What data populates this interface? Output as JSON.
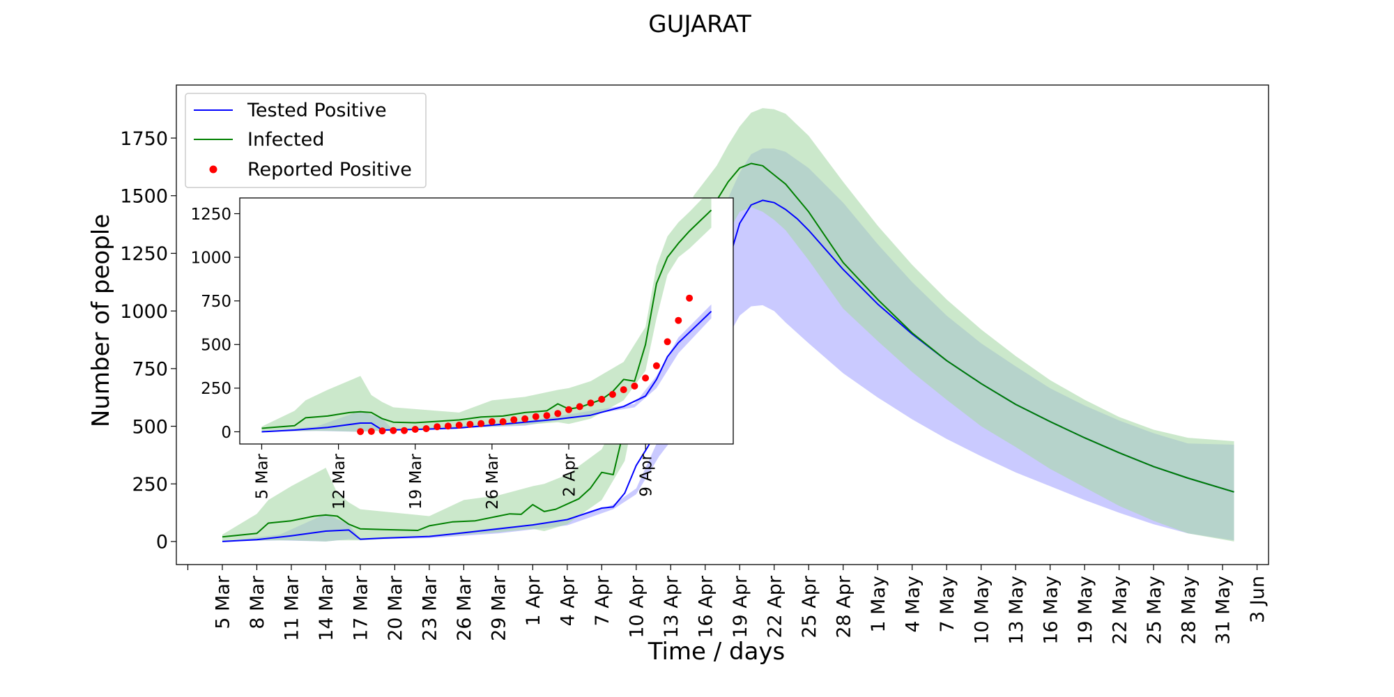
{
  "chart_data": [
    {
      "type": "line",
      "title": "GUJARAT",
      "xlabel": "Time / days",
      "ylabel": "Number of people",
      "xlim": [
        "2020-03-01",
        "2020-06-04"
      ],
      "ylim": [
        -100,
        1980
      ],
      "x_ticks": [
        "5 Mar",
        "8 Mar",
        "11 Mar",
        "14 Mar",
        "17 Mar",
        "20 Mar",
        "23 Mar",
        "26 Mar",
        "29 Mar",
        "1 Apr",
        "4 Apr",
        "7 Apr",
        "10 Apr",
        "13 Apr",
        "16 Apr",
        "19 Apr",
        "22 Apr",
        "25 Apr",
        "28 Apr",
        "1 May",
        "4 May",
        "7 May",
        "10 May",
        "13 May",
        "16 May",
        "19 May",
        "22 May",
        "25 May",
        "28 May",
        "31 May",
        "3 Jun"
      ],
      "x_tick_dates": [
        "2020-03-05",
        "2020-03-08",
        "2020-03-11",
        "2020-03-14",
        "2020-03-17",
        "2020-03-20",
        "2020-03-23",
        "2020-03-26",
        "2020-03-29",
        "2020-04-01",
        "2020-04-04",
        "2020-04-07",
        "2020-04-10",
        "2020-04-13",
        "2020-04-16",
        "2020-04-19",
        "2020-04-22",
        "2020-04-25",
        "2020-04-28",
        "2020-05-01",
        "2020-05-04",
        "2020-05-07",
        "2020-05-10",
        "2020-05-13",
        "2020-05-16",
        "2020-05-19",
        "2020-05-22",
        "2020-05-25",
        "2020-05-28",
        "2020-05-31",
        "2020-06-03"
      ],
      "y_ticks": [
        0,
        250,
        500,
        750,
        1000,
        1250,
        1500,
        1750
      ],
      "legend": {
        "placement": "upper-left",
        "entries": [
          "Tested Positive",
          "Infected",
          "Reported Positive"
        ]
      },
      "colors": {
        "tested": "#0000ff",
        "tested_band": "#b3b3ff",
        "infected": "#008000",
        "infected_band": "#a8d8a8",
        "reported": "#ff0000"
      },
      "series": [
        {
          "name": "Tested Positive",
          "x": [
            "2020-03-05",
            "2020-03-08",
            "2020-03-11",
            "2020-03-14",
            "2020-03-16",
            "2020-03-17",
            "2020-03-19",
            "2020-03-23",
            "2020-03-26",
            "2020-03-29",
            "2020-04-01",
            "2020-04-04",
            "2020-04-07",
            "2020-04-08",
            "2020-04-09",
            "2020-04-10",
            "2020-04-11",
            "2020-04-12",
            "2020-04-13",
            "2020-04-15",
            "2020-04-17",
            "2020-04-18",
            "2020-04-19",
            "2020-04-20",
            "2020-04-21",
            "2020-04-22",
            "2020-04-23",
            "2020-04-24",
            "2020-04-25",
            "2020-04-28",
            "2020-05-01",
            "2020-05-04",
            "2020-05-07",
            "2020-05-10",
            "2020-05-13",
            "2020-05-16",
            "2020-05-19",
            "2020-05-22",
            "2020-05-25",
            "2020-05-28",
            "2020-06-01"
          ],
          "y": [
            0,
            8,
            25,
            45,
            50,
            10,
            15,
            22,
            38,
            55,
            72,
            95,
            145,
            150,
            210,
            330,
            410,
            500,
            600,
            870,
            1060,
            1210,
            1380,
            1460,
            1480,
            1470,
            1440,
            1400,
            1350,
            1180,
            1030,
            900,
            785,
            685,
            595,
            520,
            450,
            385,
            325,
            275,
            215
          ]
        },
        {
          "name": "Infected",
          "x": [
            "2020-03-05",
            "2020-03-08",
            "2020-03-09",
            "2020-03-11",
            "2020-03-13",
            "2020-03-14",
            "2020-03-15",
            "2020-03-16",
            "2020-03-17",
            "2020-03-19",
            "2020-03-22",
            "2020-03-23",
            "2020-03-25",
            "2020-03-27",
            "2020-03-29",
            "2020-03-30",
            "2020-03-31",
            "2020-04-01",
            "2020-04-02",
            "2020-04-03",
            "2020-04-05",
            "2020-04-06",
            "2020-04-07",
            "2020-04-08",
            "2020-04-09",
            "2020-04-10",
            "2020-04-11",
            "2020-04-12",
            "2020-04-13",
            "2020-04-15",
            "2020-04-17",
            "2020-04-18",
            "2020-04-19",
            "2020-04-20",
            "2020-04-21",
            "2020-04-22",
            "2020-04-23",
            "2020-04-25",
            "2020-04-28",
            "2020-05-01",
            "2020-05-04",
            "2020-05-07",
            "2020-05-10",
            "2020-05-13",
            "2020-05-16",
            "2020-05-19",
            "2020-05-22",
            "2020-05-25",
            "2020-05-28",
            "2020-06-01"
          ],
          "y": [
            20,
            35,
            80,
            90,
            110,
            115,
            110,
            75,
            55,
            52,
            48,
            68,
            85,
            90,
            110,
            120,
            118,
            160,
            130,
            140,
            185,
            230,
            300,
            290,
            500,
            730,
            900,
            1000,
            1150,
            1330,
            1480,
            1560,
            1620,
            1640,
            1630,
            1590,
            1550,
            1430,
            1210,
            1050,
            905,
            785,
            685,
            595,
            520,
            450,
            385,
            325,
            275,
            215
          ]
        },
        {
          "name": "Reported Positive",
          "x": [
            "2020-03-14",
            "2020-03-15",
            "2020-03-16",
            "2020-03-17",
            "2020-03-18",
            "2020-03-19",
            "2020-03-20",
            "2020-03-21",
            "2020-03-22",
            "2020-03-23",
            "2020-03-24",
            "2020-03-25",
            "2020-03-26",
            "2020-03-27",
            "2020-03-28",
            "2020-03-29",
            "2020-03-30",
            "2020-03-31",
            "2020-04-01",
            "2020-04-02",
            "2020-04-03",
            "2020-04-04",
            "2020-04-05",
            "2020-04-06",
            "2020-04-07",
            "2020-04-08",
            "2020-04-09",
            "2020-04-10",
            "2020-04-11",
            "2020-04-12",
            "2020-04-13"
          ],
          "y": [
            1,
            2,
            5,
            7,
            7,
            14,
            18,
            29,
            33,
            38,
            43,
            47,
            58,
            58,
            69,
            74,
            87,
            93,
            105,
            127,
            144,
            165,
            186,
            214,
            241,
            262,
            308,
            378,
            516,
            638,
            766
          ]
        }
      ],
      "bands": [
        {
          "series": "Tested Positive",
          "x": [
            "2020-03-05",
            "2020-03-10",
            "2020-03-14",
            "2020-03-16",
            "2020-03-17",
            "2020-03-23",
            "2020-03-29",
            "2020-04-04",
            "2020-04-08",
            "2020-04-10",
            "2020-04-12",
            "2020-04-14",
            "2020-04-16",
            "2020-04-17",
            "2020-04-18",
            "2020-04-19",
            "2020-04-20",
            "2020-04-21",
            "2020-04-22",
            "2020-04-23",
            "2020-04-25",
            "2020-04-28",
            "2020-05-01",
            "2020-05-04",
            "2020-05-07",
            "2020-05-10",
            "2020-05-13",
            "2020-05-16",
            "2020-05-19",
            "2020-05-22",
            "2020-05-25",
            "2020-05-28",
            "2020-06-01"
          ],
          "lower": [
            0,
            5,
            0,
            10,
            8,
            15,
            35,
            70,
            140,
            205,
            370,
            500,
            700,
            790,
            890,
            980,
            1020,
            1025,
            1000,
            950,
            860,
            730,
            625,
            530,
            445,
            370,
            300,
            240,
            180,
            125,
            75,
            35,
            5
          ],
          "upper": [
            0,
            30,
            120,
            75,
            10,
            25,
            60,
            90,
            160,
            230,
            450,
            650,
            1080,
            1270,
            1490,
            1600,
            1680,
            1705,
            1705,
            1690,
            1620,
            1470,
            1290,
            1125,
            980,
            860,
            760,
            665,
            590,
            525,
            470,
            425,
            420
          ]
        },
        {
          "series": "Infected",
          "x": [
            "2020-03-05",
            "2020-03-08",
            "2020-03-09",
            "2020-03-11",
            "2020-03-14",
            "2020-03-15",
            "2020-03-16",
            "2020-03-17",
            "2020-03-23",
            "2020-03-26",
            "2020-03-29",
            "2020-04-01",
            "2020-04-02",
            "2020-04-04",
            "2020-04-07",
            "2020-04-09",
            "2020-04-10",
            "2020-04-11",
            "2020-04-12",
            "2020-04-13",
            "2020-04-15",
            "2020-04-17",
            "2020-04-18",
            "2020-04-19",
            "2020-04-20",
            "2020-04-21",
            "2020-04-22",
            "2020-04-23",
            "2020-04-25",
            "2020-04-28",
            "2020-05-01",
            "2020-05-04",
            "2020-05-07",
            "2020-05-10",
            "2020-05-13",
            "2020-05-16",
            "2020-05-19",
            "2020-05-22",
            "2020-05-25",
            "2020-05-28",
            "2020-06-01"
          ],
          "lower": [
            0,
            5,
            5,
            5,
            0,
            5,
            5,
            5,
            20,
            30,
            40,
            55,
            45,
            75,
            180,
            350,
            600,
            800,
            880,
            970,
            1080,
            1240,
            1340,
            1430,
            1450,
            1430,
            1395,
            1350,
            1220,
            1010,
            870,
            735,
            615,
            500,
            410,
            315,
            235,
            155,
            90,
            35,
            0
          ],
          "upper": [
            30,
            120,
            180,
            240,
            320,
            210,
            170,
            140,
            110,
            180,
            200,
            240,
            250,
            290,
            400,
            600,
            850,
            1000,
            1090,
            1240,
            1500,
            1630,
            1720,
            1800,
            1860,
            1880,
            1875,
            1855,
            1760,
            1560,
            1370,
            1200,
            1050,
            920,
            805,
            700,
            615,
            540,
            485,
            450,
            435
          ]
        }
      ]
    },
    {
      "type": "line",
      "title": "",
      "xlabel": "",
      "ylabel": "",
      "xlim": [
        "2020-03-03",
        "2020-04-17"
      ],
      "ylim": [
        -70,
        1340
      ],
      "x_ticks": [
        "5 Mar",
        "12 Mar",
        "19 Mar",
        "26 Mar",
        "2 Apr",
        "9 Apr"
      ],
      "x_tick_dates": [
        "2020-03-05",
        "2020-03-12",
        "2020-03-19",
        "2020-03-26",
        "2020-04-02",
        "2020-04-09"
      ],
      "y_ticks": [
        0,
        250,
        500,
        750,
        1000,
        1250
      ],
      "series": [
        {
          "name": "Tested Positive",
          "x": [
            "2020-03-05",
            "2020-03-08",
            "2020-03-11",
            "2020-03-14",
            "2020-03-15",
            "2020-03-16",
            "2020-03-20",
            "2020-03-23",
            "2020-03-26",
            "2020-03-29",
            "2020-04-01",
            "2020-04-04",
            "2020-04-07",
            "2020-04-09",
            "2020-04-10",
            "2020-04-11",
            "2020-04-12",
            "2020-04-13",
            "2020-04-14",
            "2020-04-15"
          ],
          "y": [
            0,
            10,
            25,
            50,
            50,
            10,
            15,
            22,
            38,
            55,
            72,
            95,
            145,
            205,
            300,
            430,
            510,
            570,
            630,
            690
          ]
        },
        {
          "name": "Infected",
          "x": [
            "2020-03-05",
            "2020-03-08",
            "2020-03-09",
            "2020-03-11",
            "2020-03-13",
            "2020-03-14",
            "2020-03-15",
            "2020-03-16",
            "2020-03-17",
            "2020-03-19",
            "2020-03-23",
            "2020-03-25",
            "2020-03-27",
            "2020-03-29",
            "2020-03-31",
            "2020-04-01",
            "2020-04-02",
            "2020-04-03",
            "2020-04-05",
            "2020-04-06",
            "2020-04-07",
            "2020-04-08",
            "2020-04-09",
            "2020-04-10",
            "2020-04-11",
            "2020-04-12",
            "2020-04-13",
            "2020-04-14",
            "2020-04-15"
          ],
          "y": [
            20,
            35,
            80,
            90,
            110,
            115,
            110,
            75,
            55,
            52,
            68,
            85,
            90,
            110,
            120,
            160,
            130,
            140,
            185,
            230,
            300,
            290,
            500,
            850,
            1000,
            1080,
            1150,
            1210,
            1270
          ]
        },
        {
          "name": "Reported Positive",
          "x": [
            "2020-03-14",
            "2020-03-15",
            "2020-03-16",
            "2020-03-17",
            "2020-03-18",
            "2020-03-19",
            "2020-03-20",
            "2020-03-21",
            "2020-03-22",
            "2020-03-23",
            "2020-03-24",
            "2020-03-25",
            "2020-03-26",
            "2020-03-27",
            "2020-03-28",
            "2020-03-29",
            "2020-03-30",
            "2020-03-31",
            "2020-04-01",
            "2020-04-02",
            "2020-04-03",
            "2020-04-04",
            "2020-04-05",
            "2020-04-06",
            "2020-04-07",
            "2020-04-08",
            "2020-04-09",
            "2020-04-10",
            "2020-04-11",
            "2020-04-12",
            "2020-04-13"
          ],
          "y": [
            1,
            2,
            5,
            7,
            7,
            14,
            18,
            29,
            33,
            38,
            43,
            47,
            58,
            58,
            69,
            74,
            87,
            93,
            105,
            127,
            144,
            165,
            186,
            214,
            241,
            262,
            308,
            378,
            516,
            638,
            766
          ]
        }
      ],
      "bands": [
        {
          "series": "Tested Positive",
          "x": [
            "2020-03-05",
            "2020-03-10",
            "2020-03-14",
            "2020-03-16",
            "2020-03-17",
            "2020-03-29",
            "2020-04-08",
            "2020-04-10",
            "2020-04-12",
            "2020-04-15"
          ],
          "lower": [
            0,
            5,
            0,
            10,
            8,
            35,
            140,
            250,
            450,
            650
          ],
          "upper": [
            0,
            30,
            120,
            75,
            10,
            60,
            160,
            320,
            540,
            730
          ]
        },
        {
          "series": "Infected",
          "x": [
            "2020-03-05",
            "2020-03-08",
            "2020-03-09",
            "2020-03-11",
            "2020-03-14",
            "2020-03-15",
            "2020-03-16",
            "2020-03-17",
            "2020-03-23",
            "2020-03-26",
            "2020-03-29",
            "2020-04-01",
            "2020-04-02",
            "2020-04-04",
            "2020-04-07",
            "2020-04-09",
            "2020-04-10",
            "2020-04-11",
            "2020-04-12",
            "2020-04-13",
            "2020-04-15"
          ],
          "lower": [
            0,
            5,
            5,
            5,
            0,
            5,
            5,
            5,
            20,
            30,
            40,
            55,
            45,
            75,
            180,
            350,
            650,
            900,
            1000,
            1050,
            1170
          ],
          "upper": [
            30,
            120,
            180,
            240,
            320,
            210,
            170,
            140,
            110,
            180,
            200,
            240,
            250,
            290,
            400,
            600,
            950,
            1120,
            1200,
            1260,
            1390
          ]
        }
      ]
    }
  ]
}
